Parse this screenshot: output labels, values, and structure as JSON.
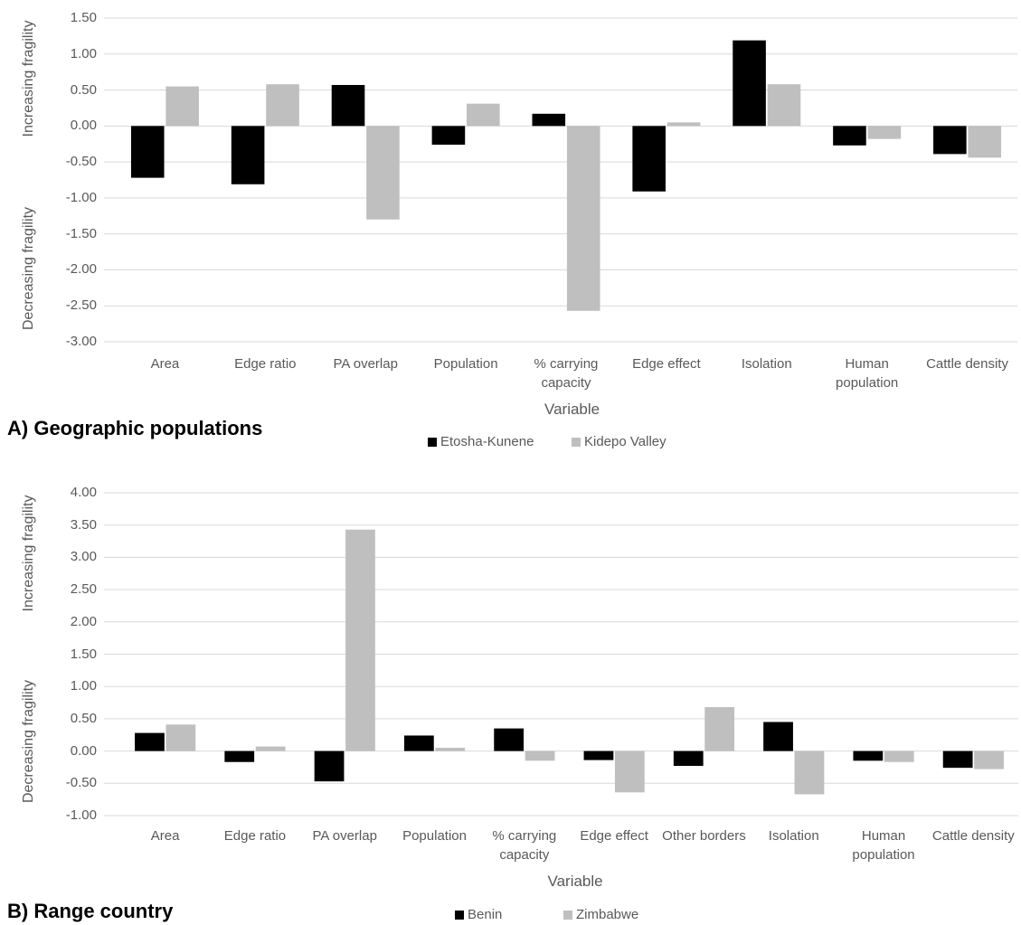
{
  "chart_data": [
    {
      "type": "bar",
      "title": "A) Geographic populations",
      "x_label": "Variable",
      "y_labels": [
        "Increasing fragility",
        "Decreasing fragility"
      ],
      "categories": [
        "Area",
        "Edge ratio",
        "PA overlap",
        "Population",
        "% carrying capacity",
        "Edge effect",
        "Isolation",
        "Human population",
        "Cattle density"
      ],
      "series": [
        {
          "name": "Etosha-Kunene",
          "color": "#000000",
          "values": [
            -0.72,
            -0.81,
            0.57,
            -0.26,
            0.17,
            -0.91,
            1.19,
            -0.27,
            -0.39
          ]
        },
        {
          "name": "Kidepo Valley",
          "color": "#bfbfbf",
          "values": [
            0.55,
            0.58,
            -1.3,
            0.31,
            -2.57,
            0.05,
            0.58,
            -0.18,
            -0.44
          ]
        }
      ],
      "ylim": [
        -3,
        1.5
      ],
      "yticks": [
        {
          "value": 1.5,
          "label": "1.50"
        },
        {
          "value": 1,
          "label": "1.00"
        },
        {
          "value": 0.5,
          "label": "0.50"
        },
        {
          "value": 0,
          "label": "0.00"
        },
        {
          "value": -0.5,
          "label": "-0.50"
        },
        {
          "value": -1,
          "label": "-1.00"
        },
        {
          "value": -1.5,
          "label": "-1.50"
        },
        {
          "value": -2,
          "label": "-2.00"
        },
        {
          "value": -2.5,
          "label": "-2.50"
        },
        {
          "value": -3,
          "label": "-3.00"
        }
      ],
      "grid": true
    },
    {
      "type": "bar",
      "title": "B) Range country",
      "x_label": "Variable",
      "y_labels": [
        "Increasing fragility",
        "Decreasing fragility"
      ],
      "categories": [
        "Area",
        "Edge ratio",
        "PA overlap",
        "Population",
        "% carrying capacity",
        "Edge effect",
        "Other borders",
        "Isolation",
        "Human population",
        "Cattle density"
      ],
      "series": [
        {
          "name": "Benin",
          "color": "#000000",
          "values": [
            0.28,
            -0.17,
            -0.47,
            0.24,
            0.35,
            -0.14,
            -0.23,
            0.45,
            -0.15,
            -0.26
          ]
        },
        {
          "name": "Zimbabwe",
          "color": "#bfbfbf",
          "values": [
            0.41,
            0.07,
            3.43,
            0.05,
            -0.15,
            -0.64,
            0.68,
            -0.67,
            -0.17,
            -0.28
          ]
        }
      ],
      "ylim": [
        -1,
        4
      ],
      "yticks": [
        {
          "value": 4,
          "label": "4.00"
        },
        {
          "value": 3.5,
          "label": "3.50"
        },
        {
          "value": 3,
          "label": "3.00"
        },
        {
          "value": 2.5,
          "label": "2.50"
        },
        {
          "value": 2,
          "label": "2.00"
        },
        {
          "value": 1.5,
          "label": "1.50"
        },
        {
          "value": 1,
          "label": "1.00"
        },
        {
          "value": 0.5,
          "label": "0.50"
        },
        {
          "value": 0,
          "label": "0.00"
        },
        {
          "value": -0.5,
          "label": "-0.50"
        },
        {
          "value": -1,
          "label": "-1.00"
        }
      ],
      "grid": true
    }
  ]
}
